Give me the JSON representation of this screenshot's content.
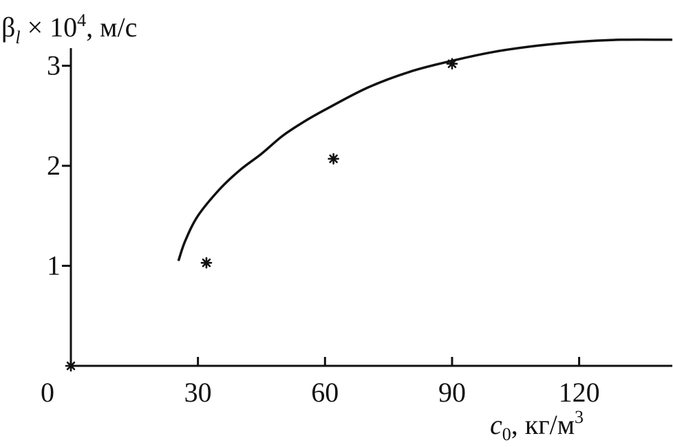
{
  "chart_data": {
    "type": "scatter",
    "ylabel": {
      "symbol": "β",
      "sub": "l",
      "times": " × 10",
      "exp": "4",
      "unit": ", м/с"
    },
    "xlabel": {
      "symbol": "c",
      "sub": "0",
      "unit": ", кг/м",
      "exp": "3"
    },
    "origin_label": "0",
    "x_ticks": [
      {
        "value": 30,
        "label": "30"
      },
      {
        "value": 60,
        "label": "60"
      },
      {
        "value": 90,
        "label": "90"
      },
      {
        "value": 120,
        "label": "120"
      }
    ],
    "y_ticks": [
      {
        "value": 1,
        "label": "1"
      },
      {
        "value": 2,
        "label": "2"
      },
      {
        "value": 3,
        "label": "3"
      }
    ],
    "xlim": [
      0,
      142
    ],
    "ylim": [
      0,
      3.3
    ],
    "marker": "*",
    "points": [
      {
        "x": 0,
        "y": 0
      },
      {
        "x": 32,
        "y": 1.03
      },
      {
        "x": 62,
        "y": 2.07
      },
      {
        "x": 90,
        "y": 3.02
      }
    ],
    "curve": [
      {
        "x": 25.4,
        "y": 1.05
      },
      {
        "x": 27,
        "y": 1.25
      },
      {
        "x": 30,
        "y": 1.5
      },
      {
        "x": 35,
        "y": 1.76
      },
      {
        "x": 40,
        "y": 1.96
      },
      {
        "x": 45,
        "y": 2.12
      },
      {
        "x": 50,
        "y": 2.3
      },
      {
        "x": 55,
        "y": 2.44
      },
      {
        "x": 60,
        "y": 2.56
      },
      {
        "x": 70,
        "y": 2.78
      },
      {
        "x": 80,
        "y": 2.94
      },
      {
        "x": 90,
        "y": 3.05
      },
      {
        "x": 100,
        "y": 3.14
      },
      {
        "x": 110,
        "y": 3.2
      },
      {
        "x": 120,
        "y": 3.24
      },
      {
        "x": 130,
        "y": 3.26
      },
      {
        "x": 142,
        "y": 3.26
      }
    ],
    "grid": false,
    "legend": false
  }
}
